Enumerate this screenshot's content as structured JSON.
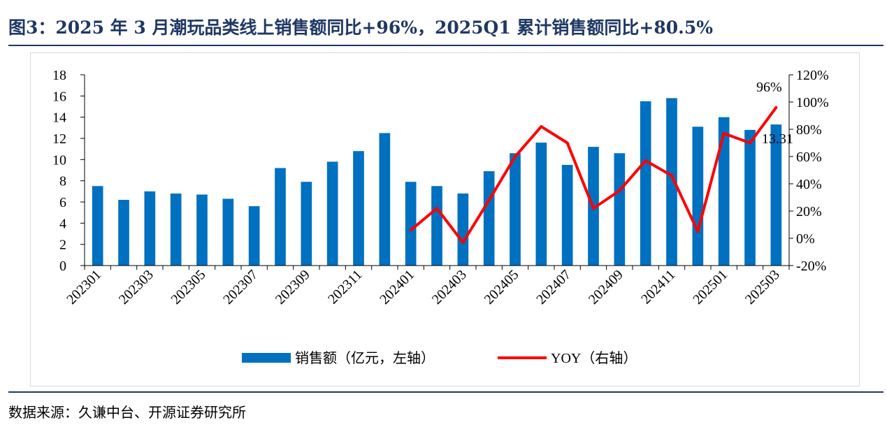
{
  "header": {
    "title": "图3：2025 年 3 月潮玩品类线上销售额同比+96%，2025Q1 累计销售额同比+80.5%"
  },
  "footer": {
    "source": "数据来源：久谦中台、开源证券研究所"
  },
  "colors": {
    "bar": "#0070c0",
    "line": "#ff0000",
    "title": "#1f3864",
    "axis": "#000000"
  },
  "chart_data": {
    "type": "bar",
    "title": "",
    "xlabel": "",
    "ylabel": "",
    "categories": [
      "202301",
      "202302",
      "202303",
      "202304",
      "202305",
      "202306",
      "202307",
      "202308",
      "202309",
      "202310",
      "202311",
      "202312",
      "202401",
      "202402",
      "202403",
      "202404",
      "202405",
      "202406",
      "202407",
      "202408",
      "202409",
      "202410",
      "202411",
      "202412",
      "202501",
      "202502",
      "202503"
    ],
    "x_tick_labels": [
      "202301",
      "202303",
      "202305",
      "202307",
      "202309",
      "202311",
      "202401",
      "202403",
      "202405",
      "202407",
      "202409",
      "202411",
      "202501",
      "202503"
    ],
    "ylim": [
      0,
      18
    ],
    "y_ticks": [
      0,
      2,
      4,
      6,
      8,
      10,
      12,
      14,
      16,
      18
    ],
    "y2lim": [
      -0.2,
      1.2
    ],
    "y2_tick_labels": [
      "-20%",
      "0%",
      "20%",
      "40%",
      "60%",
      "80%",
      "100%",
      "120%"
    ],
    "y2_ticks": [
      -0.2,
      0,
      0.2,
      0.4,
      0.6,
      0.8,
      1.0,
      1.2
    ],
    "legend_position": "bottom",
    "series": [
      {
        "name": "销售额（亿元，左轴）",
        "type": "bar",
        "axis": "left",
        "values": [
          7.5,
          6.2,
          7.0,
          6.8,
          6.7,
          6.3,
          5.6,
          9.2,
          7.9,
          9.8,
          10.8,
          12.5,
          7.9,
          7.5,
          6.8,
          8.9,
          10.6,
          11.6,
          9.5,
          11.2,
          10.6,
          15.5,
          15.8,
          13.1,
          14.0,
          12.8,
          13.31
        ]
      },
      {
        "name": "YOY（右轴）",
        "type": "line",
        "axis": "right",
        "values": [
          null,
          null,
          null,
          null,
          null,
          null,
          null,
          null,
          null,
          null,
          null,
          null,
          0.06,
          0.22,
          -0.03,
          0.28,
          0.6,
          0.82,
          0.7,
          0.22,
          0.35,
          0.57,
          0.46,
          0.05,
          0.77,
          0.7,
          0.96
        ]
      }
    ],
    "annotations": [
      {
        "text": "96%",
        "category": "202503",
        "series": "YOY（右轴）"
      },
      {
        "text": "13.31",
        "category": "202503",
        "series": "销售额（亿元，左轴）"
      }
    ]
  }
}
